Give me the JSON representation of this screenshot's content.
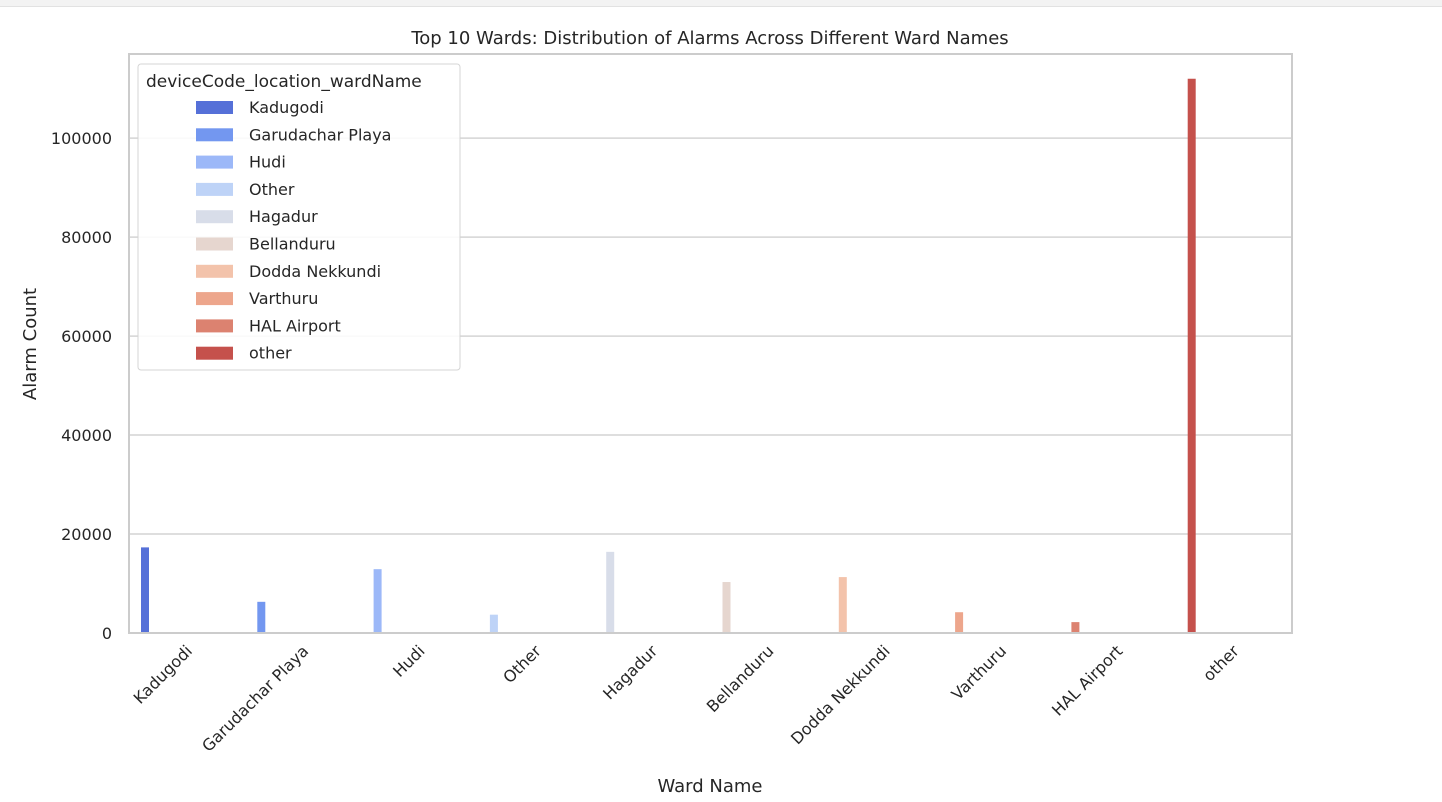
{
  "chart_data": {
    "type": "bar",
    "title": "Top 10 Wards: Distribution of Alarms Across Different Ward Names",
    "xlabel": "Ward Name",
    "ylabel": "Alarm Count",
    "ylim": [
      0,
      117000
    ],
    "yticks": [
      0,
      20000,
      40000,
      60000,
      80000,
      100000
    ],
    "grid": true,
    "legend": {
      "title": "deviceCode_location_wardName",
      "placement": "top-left"
    },
    "categories": [
      "Kadugodi",
      "Garudachar Playa",
      "Hudi",
      "Other",
      "Hagadur",
      "Bellanduru",
      "Dodda Nekkundi",
      "Varthuru",
      "HAL Airport",
      "other"
    ],
    "values": [
      17300,
      6300,
      12900,
      3700,
      16400,
      10300,
      11300,
      4200,
      2200,
      112000
    ],
    "colors": [
      "#5570d8",
      "#7397f0",
      "#9cb8f8",
      "#bed3f7",
      "#d8dde9",
      "#e6d6cf",
      "#f3c3ab",
      "#eda68c",
      "#dc8270",
      "#c5514c"
    ]
  }
}
